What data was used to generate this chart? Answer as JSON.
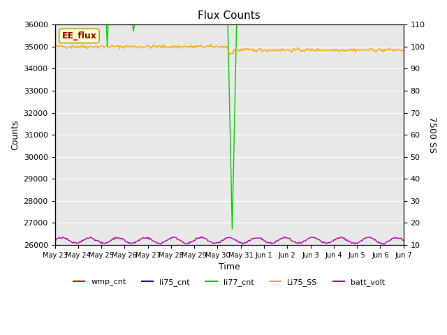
{
  "title": "Flux Counts",
  "xlabel": "Time",
  "ylabel_left": "Counts",
  "ylabel_right": "7500 SS",
  "ylim_left": [
    26000,
    36000
  ],
  "ylim_right": [
    10,
    110
  ],
  "yticks_left": [
    26000,
    27000,
    28000,
    29000,
    30000,
    31000,
    32000,
    33000,
    34000,
    35000,
    36000
  ],
  "yticks_right": [
    10,
    20,
    30,
    40,
    50,
    60,
    70,
    80,
    90,
    100,
    110
  ],
  "bg_color": "#e8e8e8",
  "legend_label": "EE_flux",
  "legend_box_color": "#ffffcc",
  "legend_text_color": "#880000",
  "n_points": 400,
  "li77_base": 36000,
  "li77_spike1_idx": 60,
  "li77_spike1_val": 35000,
  "li77_spike2_idx": 90,
  "li77_spike2_val": 35700,
  "li77_big_spike_idx": 200,
  "li77_big_spike_val": 26700,
  "li75ss_base": 35000,
  "li75ss_post_spike_base": 34850,
  "batt_base": 26200,
  "batt_amplitude": 130,
  "colors": {
    "wmp_cnt": "#cc0000",
    "li75_cnt": "#0000cc",
    "li77_cnt": "#00cc00",
    "Li75_SS": "#ffa500",
    "batt_volt": "#aa00aa"
  },
  "xtick_labels": [
    "May 23",
    "May 24",
    "May 25",
    "May 26",
    "May 27",
    "May 28",
    "May 29",
    "May 30",
    "May 31",
    "Jun 1",
    "Jun 2",
    "Jun 3",
    "Jun 4",
    "Jun 5",
    "Jun 6",
    "Jun 7"
  ]
}
